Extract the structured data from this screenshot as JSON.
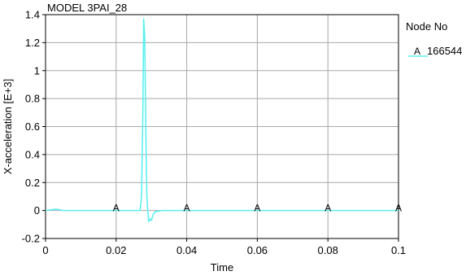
{
  "chart_data": {
    "type": "line",
    "title": "MODEL 3PAI_28",
    "xlabel": "Time",
    "ylabel": "X-acceleration [E+3]",
    "xlim": [
      0,
      0.1
    ],
    "ylim": [
      -0.2,
      1.4
    ],
    "x_ticks": [
      "0",
      "0.02",
      "0.04",
      "0.06",
      "0.08",
      "0.1"
    ],
    "y_ticks": [
      "-0.2",
      "0",
      "0.2",
      "0.4",
      "0.6",
      "0.8",
      "1",
      "1.2",
      "1.4"
    ],
    "x_tick_values": [
      0,
      0.02,
      0.04,
      0.06,
      0.08,
      0.1
    ],
    "y_tick_values": [
      -0.2,
      0,
      0.2,
      0.4,
      0.6,
      0.8,
      1,
      1.2,
      1.4
    ],
    "grid": true,
    "legend": {
      "title": "Node No",
      "placement": "right",
      "entries": [
        {
          "marker": "A",
          "label": "166544"
        }
      ]
    },
    "series": [
      {
        "name": "166544",
        "marker": "A",
        "color": "#5ff0f0",
        "marker_x": [
          0.02,
          0.04,
          0.06,
          0.08,
          0.1
        ],
        "x": [
          0,
          0.003,
          0.005,
          0.009,
          0.02,
          0.0268,
          0.0272,
          0.0276,
          0.0278,
          0.0281,
          0.0284,
          0.0287,
          0.029,
          0.0293,
          0.0296,
          0.03,
          0.0305,
          0.031,
          0.033,
          0.04,
          0.06,
          0.08,
          0.1
        ],
        "y": [
          0,
          0.01,
          0.0,
          0.0,
          0.0,
          0.0,
          0.1,
          0.75,
          1.37,
          1.25,
          0.6,
          0.1,
          -0.02,
          -0.08,
          -0.06,
          -0.07,
          -0.03,
          -0.01,
          0.0,
          0.0,
          0.0,
          0.0,
          0.0
        ]
      }
    ]
  }
}
